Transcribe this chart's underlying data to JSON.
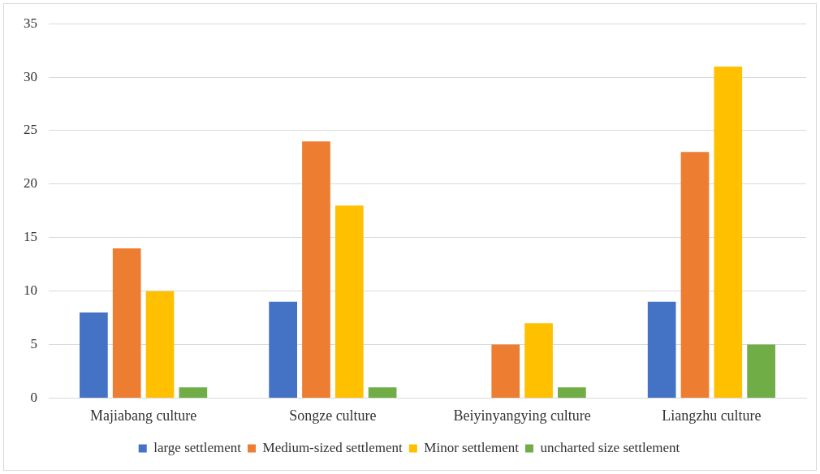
{
  "chart_data": {
    "type": "bar",
    "categories": [
      "Majiabang culture",
      "Songze culture",
      "Beiyinyangying culture",
      "Liangzhu culture"
    ],
    "series": [
      {
        "name": "large settlement",
        "color": "#4472c4",
        "values": [
          8,
          9,
          0,
          9
        ]
      },
      {
        "name": "Medium-sized settlement",
        "color": "#ed7d31",
        "values": [
          14,
          24,
          5,
          23
        ]
      },
      {
        "name": "Minor settlement",
        "color": "#ffc000",
        "values": [
          10,
          18,
          7,
          31
        ]
      },
      {
        "name": "uncharted size settlement",
        "color": "#70ad47",
        "values": [
          1,
          1,
          1,
          5
        ]
      }
    ],
    "ylim": [
      0,
      35
    ],
    "yticks": [
      0,
      5,
      10,
      15,
      20,
      25,
      30,
      35
    ],
    "grid": "y",
    "legend": "bottom"
  }
}
